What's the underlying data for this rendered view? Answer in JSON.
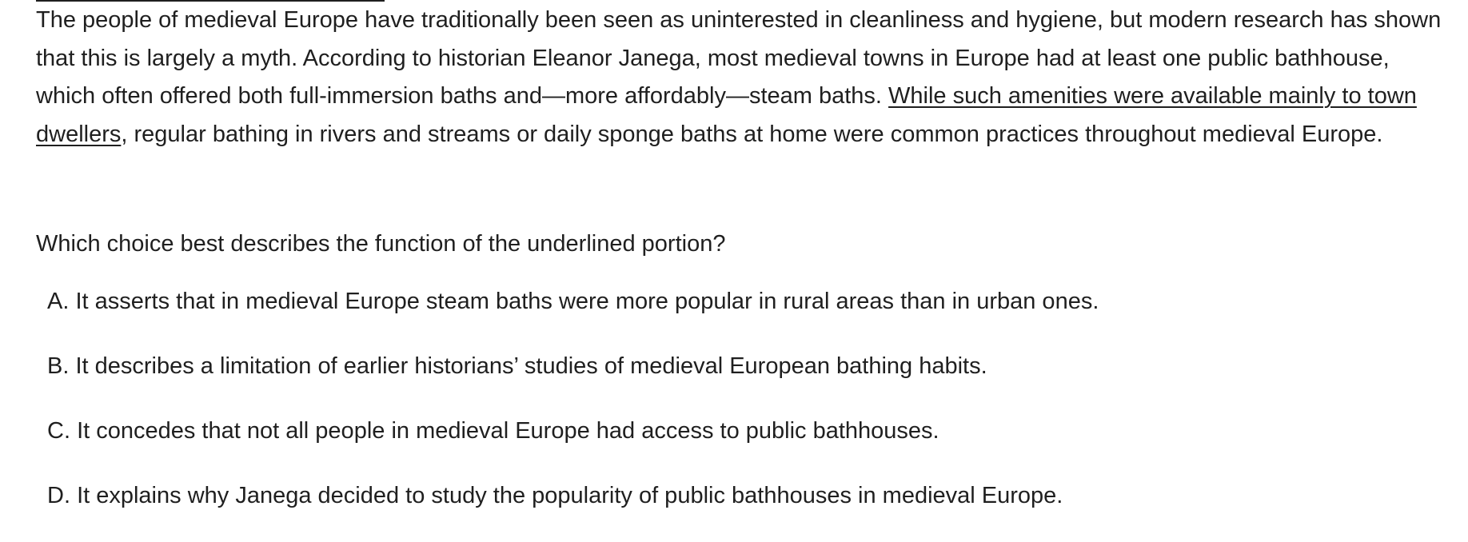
{
  "passage": {
    "before_underline": "The people of medieval Europe have traditionally been seen as uninterested in cleanliness and hygiene, but modern research has shown that this is largely a myth. According to historian Eleanor Janega, most medieval towns in Europe had at least one public bathhouse, which often offered both full-immersion baths and—more affordably—steam baths. ",
    "underlined": "While such amenities were available mainly to town dwellers",
    "after_underline": ", regular bathing in rivers and streams or daily sponge baths at home were common practices throughout medieval Europe."
  },
  "question": "Which choice best describes the function of the underlined portion?",
  "choices": [
    {
      "letter": "A.",
      "text": "It asserts that in medieval Europe steam baths were more popular in rural areas than in urban ones."
    },
    {
      "letter": "B.",
      "text": "It describes a limitation of earlier historians’ studies of medieval European bathing habits."
    },
    {
      "letter": "C.",
      "text": "It concedes that not all people in medieval Europe had access to public bathhouses."
    },
    {
      "letter": "D.",
      "text": "It explains why Janega decided to study the popularity of public bathhouses in medieval Europe."
    }
  ]
}
